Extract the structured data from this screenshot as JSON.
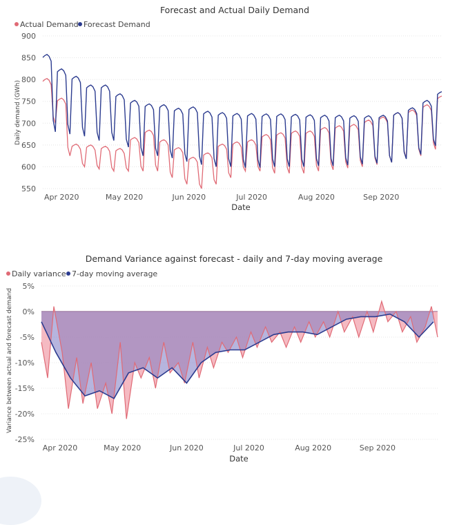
{
  "chart_data": [
    {
      "type": "line",
      "title": "Forecast and Actual Daily Demand",
      "xlabel": "Date",
      "ylabel": "Daily demand (GWh)",
      "ylim": [
        550,
        900
      ],
      "yticks": [
        550,
        600,
        650,
        700,
        750,
        800,
        850,
        900
      ],
      "x_start": "2020-03-23",
      "x_end": "2020-09-30",
      "xtick_labels": [
        {
          "date": "2020-04-01",
          "label": "Apr 2020"
        },
        {
          "date": "2020-05-01",
          "label": "May 2020"
        },
        {
          "date": "2020-06-01",
          "label": "Jun 2020"
        },
        {
          "date": "2020-07-01",
          "label": "Jul 2020"
        },
        {
          "date": "2020-08-01",
          "label": "Aug 2020"
        },
        {
          "date": "2020-09-01",
          "label": "Sep 2020"
        }
      ],
      "legend_position": "top-left",
      "grid": true,
      "weekly_series": {
        "week_start_dates": [
          "2020-03-23",
          "2020-03-30",
          "2020-04-06",
          "2020-04-13",
          "2020-04-20",
          "2020-04-27",
          "2020-05-04",
          "2020-05-11",
          "2020-05-18",
          "2020-05-25",
          "2020-06-01",
          "2020-06-08",
          "2020-06-15",
          "2020-06-22",
          "2020-06-29",
          "2020-07-06",
          "2020-07-13",
          "2020-07-20",
          "2020-07-27",
          "2020-08-03",
          "2020-08-10",
          "2020-08-17",
          "2020-08-24",
          "2020-08-31",
          "2020-09-07",
          "2020-09-14",
          "2020-09-21",
          "2020-09-28"
        ],
        "forecast_weekday": [
          855,
          822,
          805,
          785,
          785,
          765,
          750,
          742,
          740,
          732,
          735,
          725,
          722,
          720,
          720,
          719,
          719,
          718,
          717,
          716,
          716,
          715,
          715,
          716,
          722,
          733,
          750,
          770
        ],
        "forecast_weekend": [
          680,
          675,
          670,
          660,
          660,
          645,
          625,
          625,
          620,
          612,
          605,
          600,
          600,
          598,
          598,
          600,
          600,
          600,
          602,
          602,
          604,
          606,
          608,
          610,
          618,
          628,
          648,
          668
        ],
        "actual_weekday": [
          800,
          755,
          650,
          648,
          645,
          640,
          665,
          682,
          660,
          642,
          620,
          630,
          650,
          655,
          660,
          672,
          676,
          680,
          680,
          688,
          692,
          695,
          705,
          712,
          722,
          728,
          740,
          760
        ],
        "actual_weekend": [
          700,
          625,
          600,
          595,
          590,
          590,
          590,
          590,
          575,
          560,
          550,
          560,
          575,
          590,
          590,
          585,
          585,
          585,
          590,
          593,
          597,
          600,
          605,
          610,
          620,
          625,
          640,
          660
        ]
      },
      "series": [
        {
          "name": "Actual Demand",
          "color": "#e06a75"
        },
        {
          "name": "Forecast Demand",
          "color": "#2b3b8f"
        }
      ]
    },
    {
      "type": "area",
      "title": "Demand Variance against forecast - daily and 7-day moving average",
      "xlabel": "Date",
      "ylabel": "Variance between actual and forecast demand",
      "ylim": [
        -25,
        5
      ],
      "yticks": [
        {
          "value": 5,
          "label": "5%"
        },
        {
          "value": 0,
          "label": "0%"
        },
        {
          "value": -5,
          "label": "-5%"
        },
        {
          "value": -10,
          "label": "-10%"
        },
        {
          "value": -15,
          "label": "-15%"
        },
        {
          "value": -20,
          "label": "-20%"
        },
        {
          "value": -25,
          "label": "-25%"
        }
      ],
      "x_start": "2020-03-23",
      "x_end": "2020-09-30",
      "xtick_labels": [
        {
          "date": "2020-04-01",
          "label": "Apr 2020"
        },
        {
          "date": "2020-05-01",
          "label": "May 2020"
        },
        {
          "date": "2020-06-01",
          "label": "Jun 2020"
        },
        {
          "date": "2020-07-01",
          "label": "Jul 2020"
        },
        {
          "date": "2020-08-01",
          "label": "Aug 2020"
        },
        {
          "date": "2020-09-01",
          "label": "Sep 2020"
        }
      ],
      "legend_position": "top-left",
      "grid": true,
      "moving_average": {
        "dates": [
          "2020-03-23",
          "2020-03-30",
          "2020-04-06",
          "2020-04-13",
          "2020-04-20",
          "2020-04-27",
          "2020-05-04",
          "2020-05-11",
          "2020-05-18",
          "2020-05-25",
          "2020-06-01",
          "2020-06-08",
          "2020-06-15",
          "2020-06-22",
          "2020-06-29",
          "2020-07-06",
          "2020-07-13",
          "2020-07-20",
          "2020-07-27",
          "2020-08-03",
          "2020-08-10",
          "2020-08-17",
          "2020-08-24",
          "2020-08-31",
          "2020-09-07",
          "2020-09-14",
          "2020-09-21",
          "2020-09-28"
        ],
        "values": [
          -2,
          -8,
          -13,
          -16.5,
          -15.5,
          -17,
          -12,
          -11,
          -13,
          -11,
          -14,
          -10,
          -8,
          -7.5,
          -7.5,
          -6,
          -4.5,
          -4,
          -4,
          -4.5,
          -3,
          -1.5,
          -1,
          -1,
          -0.5,
          -2,
          -5,
          -2
        ]
      },
      "daily_variance": {
        "dates": [
          "2020-03-23",
          "2020-03-26",
          "2020-03-29",
          "2020-04-02",
          "2020-04-05",
          "2020-04-09",
          "2020-04-12",
          "2020-04-16",
          "2020-04-19",
          "2020-04-23",
          "2020-04-26",
          "2020-04-30",
          "2020-05-03",
          "2020-05-07",
          "2020-05-10",
          "2020-05-14",
          "2020-05-17",
          "2020-05-21",
          "2020-05-24",
          "2020-05-28",
          "2020-05-31",
          "2020-06-04",
          "2020-06-07",
          "2020-06-11",
          "2020-06-14",
          "2020-06-18",
          "2020-06-21",
          "2020-06-25",
          "2020-06-28",
          "2020-07-02",
          "2020-07-05",
          "2020-07-09",
          "2020-07-12",
          "2020-07-16",
          "2020-07-19",
          "2020-07-23",
          "2020-07-26",
          "2020-07-30",
          "2020-08-02",
          "2020-08-06",
          "2020-08-09",
          "2020-08-13",
          "2020-08-16",
          "2020-08-20",
          "2020-08-23",
          "2020-08-27",
          "2020-08-30",
          "2020-09-03",
          "2020-09-06",
          "2020-09-10",
          "2020-09-13",
          "2020-09-17",
          "2020-09-20",
          "2020-09-24",
          "2020-09-27",
          "2020-09-30"
        ],
        "values": [
          -6,
          -13,
          1,
          -8,
          -19,
          -9,
          -18,
          -10,
          -19,
          -14,
          -20,
          -6,
          -21,
          -10,
          -13,
          -9,
          -15,
          -6,
          -12,
          -10,
          -14,
          -6,
          -13,
          -7,
          -11,
          -6,
          -8,
          -5,
          -9,
          -4,
          -7,
          -3,
          -6,
          -4,
          -7,
          -3,
          -6,
          -2,
          -5,
          -2,
          -5,
          0,
          -4,
          -1,
          -5,
          0,
          -4,
          2,
          -2,
          0,
          -4,
          -1,
          -6,
          -3,
          1,
          -5
        ]
      },
      "series": [
        {
          "name": "Daily variance",
          "color": "#e06a75"
        },
        {
          "name": "7-day moving average",
          "color": "#2b3b8f"
        }
      ]
    }
  ]
}
